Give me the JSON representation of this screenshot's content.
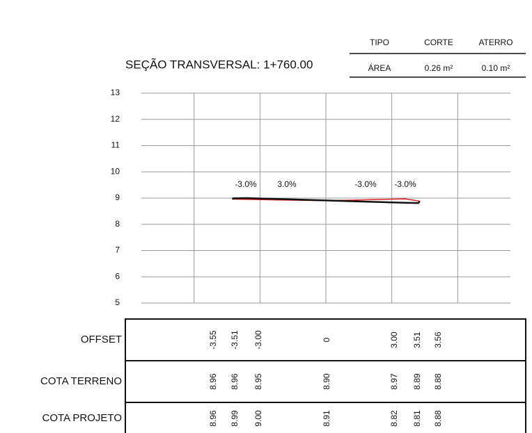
{
  "chart_data": {
    "type": "line",
    "title": "SEÇÃO TRANSVERSAL: 1+760.00",
    "x": [
      -3.55,
      -3.51,
      -3.0,
      0,
      3.0,
      3.51,
      3.56
    ],
    "x_labels": [
      "-3.55",
      "-3.51",
      "-3.00",
      "0",
      "3.00",
      "3.51",
      "3.56"
    ],
    "x_row_label": "OFFSET",
    "xlim": [
      -7,
      7
    ],
    "xticks": [
      -5,
      -2.5,
      0,
      2.5,
      5
    ],
    "ylim": [
      5,
      13
    ],
    "yticks": [
      5,
      6,
      7,
      8,
      9,
      10,
      11,
      12,
      13
    ],
    "grid": true,
    "series": [
      {
        "name": "COTA TERRENO",
        "color": "#e02020",
        "values": [
          8.96,
          8.96,
          8.95,
          8.9,
          8.97,
          8.89,
          8.88
        ],
        "value_labels": [
          "8.96",
          "8.96",
          "8.95",
          "8.90",
          "8.97",
          "8.89",
          "8.88"
        ]
      },
      {
        "name": "COTA PROJETO",
        "color": "#111111",
        "values": [
          8.96,
          8.99,
          9.0,
          8.91,
          8.82,
          8.81,
          8.88
        ],
        "value_labels": [
          "8.96",
          "8.99",
          "9.00",
          "8.91",
          "8.82",
          "8.81",
          "8.88"
        ]
      }
    ],
    "annotations": [
      "-3.0%",
      "3.0%",
      "-3.0%",
      "-3.0%"
    ]
  },
  "summary_table": {
    "header": [
      "TIPO",
      "CORTE",
      "ATERRO"
    ],
    "row": [
      "ÁREA",
      "0.26 m²",
      "0.10 m²"
    ]
  }
}
